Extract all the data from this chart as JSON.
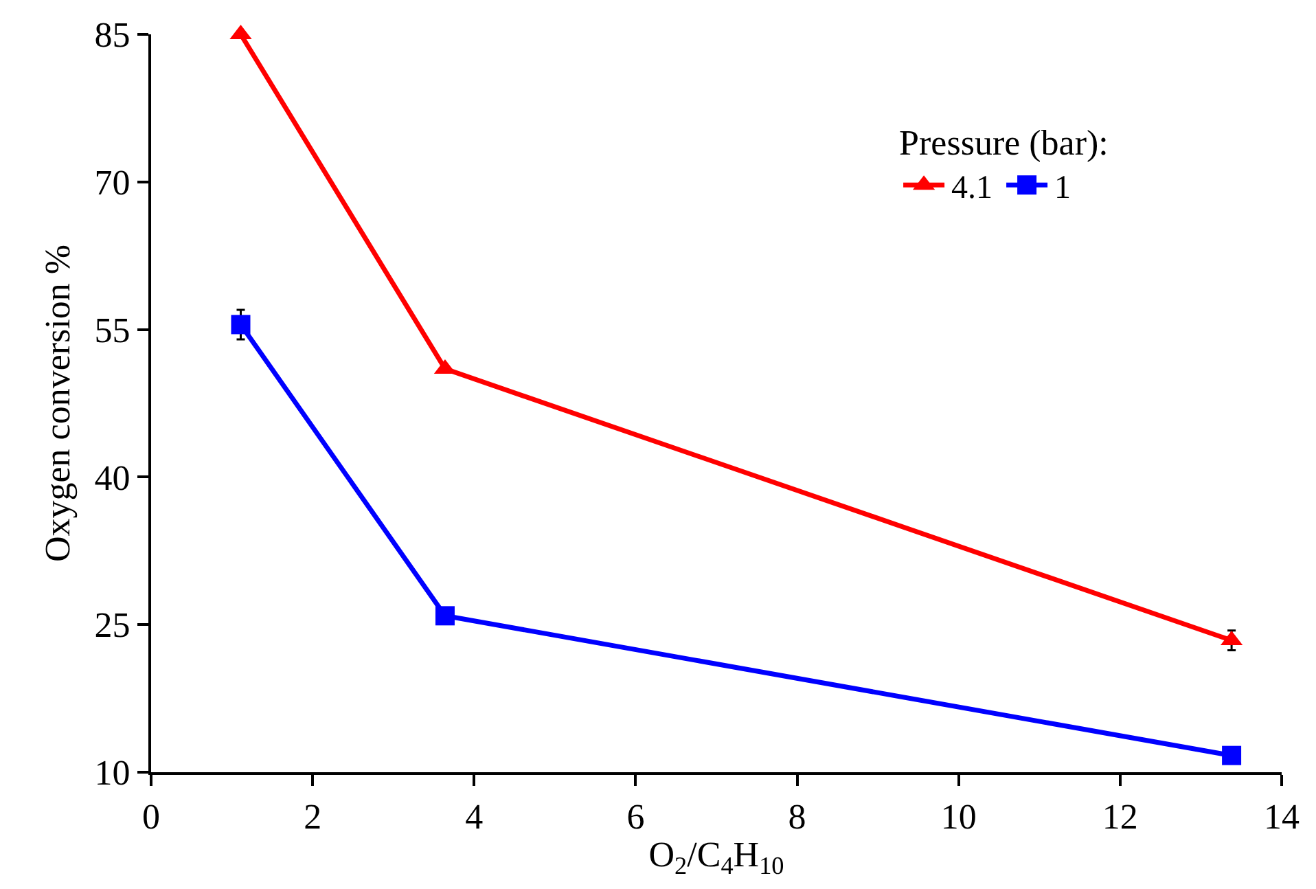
{
  "chart_data": {
    "type": "line",
    "xlabel": "O$_{2}$/C$_{4}$H$_{10}$",
    "ylabel": "Oxygen conversion %",
    "legend_title": "Pressure (bar):",
    "legend": "top right",
    "x": [
      1.11,
      3.64,
      13.38
    ],
    "series": [
      {
        "name": "4.1",
        "color": "#ff0000",
        "marker": "triangle",
        "values": [
          85,
          51,
          23.4
        ],
        "errors": [
          null,
          null,
          1.0
        ]
      },
      {
        "name": "1",
        "color": "#0000ff",
        "marker": "square",
        "values": [
          55.5,
          25.9,
          11.7
        ],
        "errors": [
          1.5,
          null,
          null
        ]
      }
    ],
    "xlim": [
      0,
      14
    ],
    "xticks": [
      0,
      2,
      4,
      6,
      8,
      10,
      12,
      14
    ],
    "ylim": [
      10,
      85
    ],
    "yticks": [
      10,
      25,
      40,
      55,
      70,
      85
    ],
    "grid": false,
    "line_style": "solid"
  }
}
